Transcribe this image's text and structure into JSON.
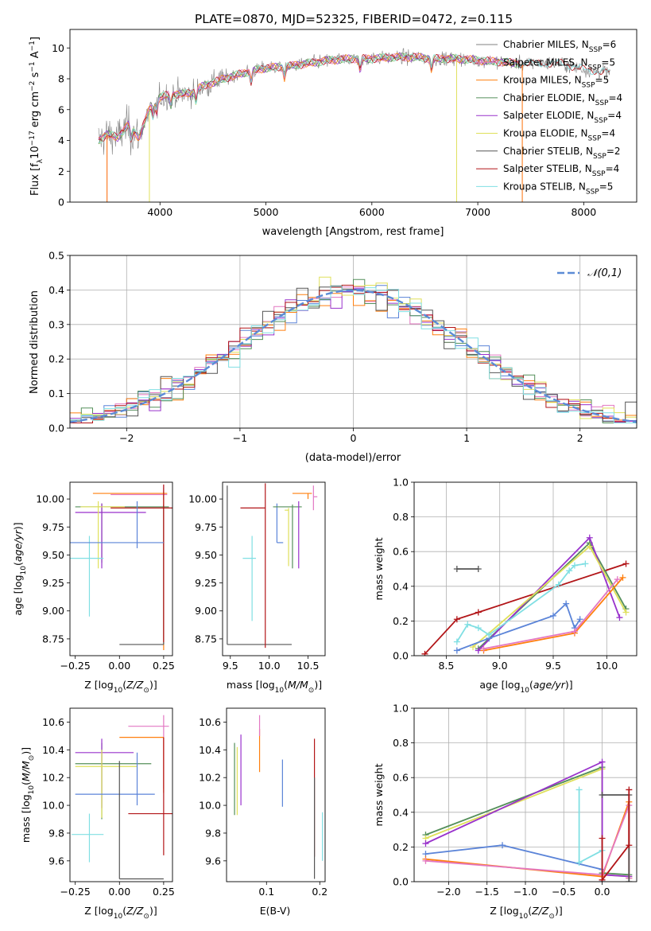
{
  "title": "PLATE=0870, MJD=52325, FIBERID=0472, z=0.115",
  "colors": {
    "Chabrier MILES": "#808080",
    "Salpeter MILES": "#e377c2",
    "Kroupa MILES": "#ff7f0e",
    "Chabrier ELODIE": "#548f5a",
    "Salpeter ELODIE": "#9932cc",
    "Kroupa ELODIE": "#dfe05a",
    "Chabrier STELIB": "#555555",
    "Salpeter STELIB": "#b21518",
    "Kroupa STELIB": "#80dfe3",
    "Chabrier MILES blue": "#5b84d8",
    "normal": "#5b8bd6"
  },
  "legend_spectrum": [
    {
      "model": "Chabrier MILES",
      "nssp": "6"
    },
    {
      "model": "Salpeter MILES",
      "nssp": "5"
    },
    {
      "model": "Kroupa MILES",
      "nssp": "5"
    },
    {
      "model": "Chabrier ELODIE",
      "nssp": "4"
    },
    {
      "model": "Salpeter ELODIE",
      "nssp": "4"
    },
    {
      "model": "Kroupa ELODIE",
      "nssp": "4"
    },
    {
      "model": "Chabrier STELIB",
      "nssp": "2"
    },
    {
      "model": "Salpeter STELIB",
      "nssp": "4"
    },
    {
      "model": "Kroupa STELIB",
      "nssp": "5"
    }
  ],
  "chart_data": [
    {
      "id": "spectrum",
      "type": "line",
      "xlabel": "wavelength [Angstrom, rest frame]",
      "ylabel": "Flux [f_λ10^-17 erg cm^-2 s^-1 A^-1]",
      "xlim": [
        3150,
        8500
      ],
      "ylim": [
        0,
        11.2
      ],
      "xticks": [
        4000,
        5000,
        6000,
        7000,
        8000
      ],
      "yticks": [
        0,
        2,
        4,
        6,
        8,
        10
      ],
      "grid": false,
      "legend": "right",
      "continuum": {
        "x": [
          3400,
          3500,
          3600,
          3700,
          3800,
          3900,
          4000,
          4100,
          4200,
          4300,
          4400,
          4600,
          4800,
          5000,
          5200,
          5400,
          5600,
          5800,
          6000,
          6200,
          6400,
          6600,
          6800,
          7000,
          7200,
          7400,
          7600,
          7800,
          8000,
          8250
        ],
        "y": [
          3.9,
          4.4,
          4.2,
          5.0,
          4.2,
          6.0,
          6.8,
          7.0,
          7.0,
          7.1,
          7.5,
          8.0,
          8.4,
          8.7,
          8.8,
          9.0,
          9.2,
          9.3,
          9.3,
          9.4,
          9.4,
          9.3,
          9.3,
          9.2,
          9.1,
          9.0,
          9.0,
          9.0,
          8.6,
          8.4
        ]
      },
      "gaps": [
        {
          "model": "Salpeter MILES",
          "at": 3500
        },
        {
          "model": "Kroupa MILES",
          "at": 3500
        },
        {
          "model": "Kroupa ELODIE",
          "at": 3900
        },
        {
          "model": "Kroupa ELODIE",
          "at": 6800
        },
        {
          "model": "Salpeter MILES",
          "at": 7420
        },
        {
          "model": "Kroupa MILES",
          "at": 7420
        }
      ]
    },
    {
      "id": "residuals",
      "type": "step",
      "xlabel": "(data-model)/error",
      "ylabel": "Normed distribution",
      "xlim": [
        -2.5,
        2.5
      ],
      "ylim": [
        0,
        0.5
      ],
      "xticks": [
        -2,
        -1,
        0,
        1,
        2
      ],
      "yticks": [
        0.0,
        0.1,
        0.2,
        0.3,
        0.4,
        0.5
      ],
      "grid": true,
      "legend": "top-right",
      "normal_label": "𝒩(0,1)",
      "bin_width": 0.1
    },
    {
      "id": "z-age",
      "type": "errorbar",
      "xlabel": "Z [log10(Z/Z⊙)]",
      "ylabel": "age [log10(age/yr)]",
      "xlim": [
        -0.28,
        0.3
      ],
      "ylim": [
        8.6,
        10.15
      ],
      "xticks": [
        -0.25,
        0.0,
        0.25
      ],
      "yticks": [
        8.75,
        9.0,
        9.25,
        9.5,
        9.75,
        10.0
      ],
      "points": [
        {
          "model": "Chabrier MILES",
          "x": 0.25,
          "xerr": [
            0.0,
            0.0
          ],
          "y": 10.05,
          "yerr": [
            0.05,
            0.05
          ]
        },
        {
          "model": "Salpeter MILES",
          "x": 0.25,
          "xerr": [
            0.3,
            0.02
          ],
          "y": 10.04,
          "yerr": [
            0.1,
            0.08
          ]
        },
        {
          "model": "Kroupa MILES",
          "x": 0.25,
          "xerr": [
            0.4,
            0.02
          ],
          "y": 10.05,
          "yerr": [
            1.4,
            0.02
          ]
        },
        {
          "model": "Chabrier ELODIE",
          "x": -0.1,
          "xerr": [
            0.15,
            0.38
          ],
          "y": 9.93,
          "yerr": [
            0.5,
            0.03
          ]
        },
        {
          "model": "Salpeter ELODIE",
          "x": -0.1,
          "xerr": [
            0.15,
            0.25
          ],
          "y": 9.88,
          "yerr": [
            0.5,
            0.08
          ]
        },
        {
          "model": "Kroupa ELODIE",
          "x": -0.12,
          "xerr": [
            0.1,
            0.15
          ],
          "y": 9.93,
          "yerr": [
            0.55,
            0.05
          ]
        },
        {
          "model": "Chabrier STELIB",
          "x": 0.25,
          "xerr": [
            0.25,
            0.0
          ],
          "y": 8.7,
          "yerr": [
            0.0,
            1.25
          ]
        },
        {
          "model": "Salpeter STELIB",
          "x": 0.25,
          "xerr": [
            0.3,
            0.07
          ],
          "y": 9.92,
          "yerr": [
            1.2,
            0.21
          ]
        },
        {
          "model": "Kroupa STELIB",
          "x": -0.17,
          "xerr": [
            0.12,
            0.08
          ],
          "y": 9.47,
          "yerr": [
            0.52,
            0.2
          ]
        },
        {
          "model": "Chabrier MILES blue",
          "x": 0.1,
          "xerr": [
            0.38,
            0.15
          ],
          "y": 9.61,
          "yerr": [
            0.05,
            0.37
          ]
        }
      ]
    },
    {
      "id": "mass-age",
      "type": "errorbar",
      "xlabel": "mass [log10(M/M⊙)]",
      "ylabel": "",
      "xlim": [
        9.4,
        10.72
      ],
      "ylim": [
        8.6,
        10.15
      ],
      "xticks": [
        9.5,
        10.0,
        10.5
      ],
      "yticks": [
        8.75,
        9.0,
        9.25,
        9.5,
        9.75,
        10.0
      ],
      "points": [
        {
          "model": "Chabrier STELIB",
          "x": 9.46,
          "xerr": [
            0.0,
            0.83
          ],
          "y": 8.7,
          "yerr": [
            0.0,
            1.42
          ]
        },
        {
          "model": "Salpeter STELIB",
          "x": 9.95,
          "xerr": [
            0.32,
            0.0
          ],
          "y": 9.92,
          "yerr": [
            1.25,
            0.22
          ]
        },
        {
          "model": "Kroupa STELIB",
          "x": 9.78,
          "xerr": [
            0.12,
            0.05
          ],
          "y": 9.47,
          "yerr": [
            0.56,
            0.2
          ]
        },
        {
          "model": "Chabrier MILES blue",
          "x": 10.1,
          "xerr": [
            0.0,
            0.08
          ],
          "y": 9.61,
          "yerr": [
            0.0,
            0.35
          ]
        },
        {
          "model": "Salpeter MILES",
          "x": 10.57,
          "xerr": [
            0.0,
            0.05
          ],
          "y": 10.02,
          "yerr": [
            0.12,
            0.1
          ]
        },
        {
          "model": "Kroupa MILES",
          "x": 10.5,
          "xerr": [
            0.2,
            0.05
          ],
          "y": 10.05,
          "yerr": [
            0.05,
            0.0
          ]
        },
        {
          "model": "Chabrier ELODIE",
          "x": 10.3,
          "xerr": [
            0.25,
            0.12
          ],
          "y": 9.93,
          "yerr": [
            0.55,
            0.02
          ]
        },
        {
          "model": "Salpeter ELODIE",
          "x": 10.38,
          "xerr": [
            0.0,
            0.0
          ],
          "y": 9.88,
          "yerr": [
            0.5,
            0.1
          ]
        },
        {
          "model": "Kroupa ELODIE",
          "x": 10.25,
          "xerr": [
            0.05,
            0.0
          ],
          "y": 9.9,
          "yerr": [
            0.5,
            0.02
          ]
        }
      ]
    },
    {
      "id": "age-weight",
      "type": "line",
      "xlabel": "age [log10(age/yr)]",
      "ylabel": "mass weight",
      "xlim": [
        8.2,
        10.28
      ],
      "ylim": [
        0,
        1.0
      ],
      "xticks": [
        8.5,
        9.0,
        9.5,
        10.0
      ],
      "yticks": [
        0.0,
        0.2,
        0.4,
        0.6,
        0.8,
        1.0
      ],
      "grid": true,
      "series": [
        {
          "model": "Chabrier STELIB",
          "x": [
            8.6,
            8.8
          ],
          "y": [
            0.5,
            0.5
          ]
        },
        {
          "model": "Salpeter STELIB",
          "x": [
            8.3,
            8.6,
            8.8,
            10.18
          ],
          "y": [
            0.01,
            0.21,
            0.25,
            0.53
          ]
        },
        {
          "model": "Chabrier ELODIE",
          "x": [
            8.8,
            9.84,
            10.18
          ],
          "y": [
            0.04,
            0.65,
            0.27
          ]
        },
        {
          "model": "Salpeter ELODIE",
          "x": [
            8.8,
            9.84,
            10.12
          ],
          "y": [
            0.03,
            0.68,
            0.22
          ]
        },
        {
          "model": "Kroupa ELODIE",
          "x": [
            8.75,
            9.84,
            10.18
          ],
          "y": [
            0.05,
            0.63,
            0.25
          ]
        },
        {
          "model": "Chabrier MILES blue",
          "x": [
            8.6,
            8.9,
            9.5,
            9.62,
            9.7,
            9.75
          ],
          "y": [
            0.03,
            0.1,
            0.23,
            0.3,
            0.16,
            0.21
          ]
        },
        {
          "model": "Kroupa STELIB",
          "x": [
            8.6,
            8.7,
            8.8,
            8.9,
            9.55,
            9.65,
            9.7,
            9.8
          ],
          "y": [
            0.08,
            0.18,
            0.16,
            0.12,
            0.41,
            0.49,
            0.52,
            0.53
          ]
        },
        {
          "model": "Kroupa MILES",
          "x": [
            8.85,
            9.7,
            10.15
          ],
          "y": [
            0.03,
            0.13,
            0.45
          ]
        },
        {
          "model": "Salpeter MILES",
          "x": [
            8.85,
            9.7,
            10.1
          ],
          "y": [
            0.04,
            0.14,
            0.44
          ]
        }
      ]
    },
    {
      "id": "z-mass",
      "type": "errorbar",
      "xlabel": "Z [log10(Z/Z⊙)]",
      "ylabel": "mass [log10(M/M⊙)]",
      "xlim": [
        -0.28,
        0.3
      ],
      "ylim": [
        9.45,
        10.7
      ],
      "xticks": [
        -0.25,
        0.0,
        0.25
      ],
      "yticks": [
        9.6,
        9.8,
        10.0,
        10.2,
        10.4,
        10.6
      ],
      "points": [
        {
          "model": "Salpeter MILES",
          "x": 0.25,
          "xerr": [
            0.2,
            0.03
          ],
          "y": 10.57,
          "yerr": [
            0.45,
            0.08
          ]
        },
        {
          "model": "Kroupa MILES",
          "x": 0.25,
          "xerr": [
            0.25,
            0.0
          ],
          "y": 10.49,
          "yerr": [
            0.4,
            0.0
          ]
        },
        {
          "model": "Chabrier ELODIE",
          "x": -0.1,
          "xerr": [
            0.15,
            0.28
          ],
          "y": 10.3,
          "yerr": [
            0.4,
            0.15
          ]
        },
        {
          "model": "Salpeter ELODIE",
          "x": -0.1,
          "xerr": [
            0.15,
            0.18
          ],
          "y": 10.38,
          "yerr": [
            0.4,
            0.1
          ]
        },
        {
          "model": "Kroupa ELODIE",
          "x": -0.1,
          "xerr": [
            0.15,
            0.2
          ],
          "y": 10.28,
          "yerr": [
            0.37,
            0.12
          ]
        },
        {
          "model": "Chabrier MILES blue",
          "x": 0.1,
          "xerr": [
            0.35,
            0.1
          ],
          "y": 10.08,
          "yerr": [
            0.08,
            0.3
          ]
        },
        {
          "model": "Salpeter STELIB",
          "x": 0.25,
          "xerr": [
            0.2,
            0.05
          ],
          "y": 9.94,
          "yerr": [
            0.3,
            0.55
          ]
        },
        {
          "model": "Kroupa STELIB",
          "x": -0.17,
          "xerr": [
            0.1,
            0.08
          ],
          "y": 9.79,
          "yerr": [
            0.2,
            0.15
          ]
        },
        {
          "model": "Chabrier STELIB",
          "x": 0.0,
          "xerr": [
            0.0,
            0.25
          ],
          "y": 9.47,
          "yerr": [
            0.0,
            0.85
          ]
        }
      ]
    },
    {
      "id": "ebv-mass",
      "type": "errorbar",
      "xlabel": "E(B-V)",
      "ylabel": "",
      "xlim": [
        0.025,
        0.21
      ],
      "ylim": [
        9.45,
        10.7
      ],
      "xticks": [
        0.1,
        0.2
      ],
      "yticks": [
        9.6,
        9.8,
        10.0,
        10.2,
        10.4,
        10.6
      ],
      "points": [
        {
          "model": "Chabrier ELODIE",
          "x": 0.04,
          "yerr": [
            9.93,
            10.45
          ]
        },
        {
          "model": "Kroupa ELODIE",
          "x": 0.045,
          "yerr": [
            9.93,
            10.42
          ]
        },
        {
          "model": "Salpeter ELODIE",
          "x": 0.052,
          "yerr": [
            10.0,
            10.51
          ]
        },
        {
          "model": "Kroupa MILES",
          "x": 0.087,
          "yerr": [
            10.24,
            10.55
          ]
        },
        {
          "model": "Salpeter MILES",
          "x": 0.087,
          "yerr": [
            10.5,
            10.65
          ]
        },
        {
          "model": "Chabrier MILES blue",
          "x": 0.13,
          "yerr": [
            9.99,
            10.33
          ]
        },
        {
          "model": "Salpeter STELIB",
          "x": 0.19,
          "yerr": [
            9.63,
            10.48
          ]
        },
        {
          "model": "Chabrier STELIB",
          "x": 0.19,
          "yerr": [
            9.47,
            10.2
          ]
        },
        {
          "model": "Kroupa STELIB",
          "x": 0.205,
          "yerr": [
            9.6,
            9.95
          ]
        }
      ]
    },
    {
      "id": "z-weight",
      "type": "line",
      "xlabel": "Z [log10(Z/Z⊙)]",
      "ylabel": "mass weight",
      "xlim": [
        -2.45,
        0.45
      ],
      "ylim": [
        0,
        1.0
      ],
      "xticks": [
        -2.0,
        -1.5,
        -1.0,
        -0.5,
        0.0
      ],
      "yticks": [
        0.0,
        0.2,
        0.4,
        0.6,
        0.8,
        1.0
      ],
      "grid": true,
      "series": [
        {
          "model": "Chabrier ELODIE",
          "x": [
            -2.3,
            0.0,
            0.0,
            0.35
          ],
          "y": [
            0.27,
            0.66,
            0.05,
            0.04
          ]
        },
        {
          "model": "Kroupa ELODIE",
          "x": [
            -2.3,
            0.0,
            0.0,
            0.35
          ],
          "y": [
            0.25,
            0.65,
            0.04,
            0.03
          ]
        },
        {
          "model": "Salpeter ELODIE",
          "x": [
            -2.3,
            0.0,
            0.0,
            0.35
          ],
          "y": [
            0.22,
            0.69,
            0.04,
            0.03
          ]
        },
        {
          "model": "Chabrier MILES blue",
          "x": [
            -2.3,
            -1.3,
            0.0,
            0.0
          ],
          "y": [
            0.16,
            0.21,
            0.07,
            0.0
          ]
        },
        {
          "model": "Kroupa STELIB",
          "x": [
            -0.3,
            -0.3,
            0.0,
            0.0
          ],
          "y": [
            0.53,
            0.11,
            0.18,
            0.0
          ]
        },
        {
          "model": "Kroupa MILES",
          "x": [
            -2.3,
            0.0,
            0.35,
            0.35
          ],
          "y": [
            0.13,
            0.03,
            0.46,
            0.02
          ]
        },
        {
          "model": "Salpeter MILES",
          "x": [
            -2.3,
            0.0,
            0.35,
            0.35
          ],
          "y": [
            0.12,
            0.04,
            0.44,
            0.02
          ]
        },
        {
          "model": "Chabrier STELIB",
          "x": [
            0.0,
            0.35,
            0.35
          ],
          "y": [
            0.5,
            0.5,
            0.0
          ]
        },
        {
          "model": "Salpeter STELIB",
          "x": [
            0.0,
            0.0,
            0.35,
            0.35
          ],
          "y": [
            0.25,
            0.01,
            0.21,
            0.53
          ]
        }
      ]
    }
  ]
}
